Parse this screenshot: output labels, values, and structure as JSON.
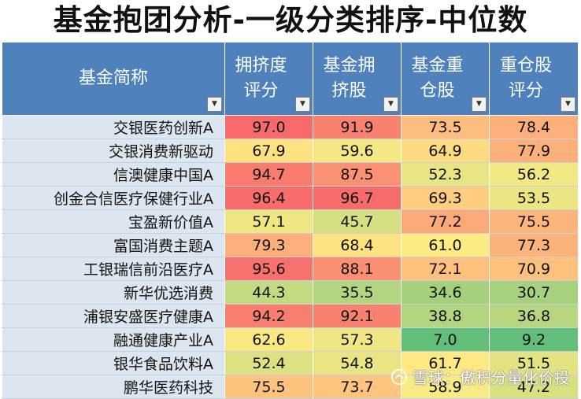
{
  "title": "基金抱团分析-一级分类排序-中位数",
  "columns": [
    "基金简称",
    "拥挤度评分",
    "基金拥挤股",
    "基金重仓股",
    "重仓股评分"
  ],
  "rows": [
    {
      "name": "交银医药创新A",
      "values": [
        "97.0",
        "91.9",
        "73.5",
        "78.4"
      ],
      "colors": [
        "#f8696b",
        "#f98170",
        "#fdbd7e",
        "#fcaf7b"
      ]
    },
    {
      "name": "交银消费新驱动",
      "values": [
        "67.9",
        "59.6",
        "64.9",
        "77.9"
      ],
      "colors": [
        "#fee282",
        "#f4e884",
        "#feda81",
        "#fcb17b"
      ]
    },
    {
      "name": "信澳健康中国A",
      "values": [
        "94.7",
        "87.5",
        "52.3",
        "56.2"
      ],
      "colors": [
        "#f87b6e",
        "#fa9172",
        "#e8e583",
        "#f2e884"
      ]
    },
    {
      "name": "创金合信医疗保健行业A",
      "values": [
        "96.4",
        "96.7",
        "69.3",
        "53.5"
      ],
      "colors": [
        "#f86c6b",
        "#f86b6b",
        "#fecd7f",
        "#ebe583"
      ]
    },
    {
      "name": "宝盈新价值A",
      "values": [
        "57.1",
        "45.7",
        "77.2",
        "75.5"
      ],
      "colors": [
        "#eee683",
        "#d5df81",
        "#fca979",
        "#fcb67c"
      ]
    },
    {
      "name": "富国消费主题A",
      "values": [
        "79.3",
        "68.4",
        "61.0",
        "77.3"
      ],
      "colors": [
        "#fcaf7b",
        "#fee282",
        "#feeb84",
        "#fcb37b"
      ]
    },
    {
      "name": "工银瑞信前沿医疗A",
      "values": [
        "95.6",
        "88.1",
        "72.1",
        "70.9"
      ],
      "colors": [
        "#f8716c",
        "#fa8f72",
        "#fdc17d",
        "#fdc07d"
      ]
    },
    {
      "name": "新华优选消费",
      "values": [
        "44.3",
        "35.5",
        "34.6",
        "30.7"
      ],
      "colors": [
        "#c2da80",
        "#b4d57f",
        "#a5d17d",
        "#a7d17e"
      ]
    },
    {
      "name": "浦银安盛医疗健康A",
      "values": [
        "94.2",
        "92.1",
        "38.8",
        "36.8"
      ],
      "colors": [
        "#f87e6f",
        "#f98170",
        "#b3d57f",
        "#b8d67f"
      ]
    },
    {
      "name": "融通健康产业A",
      "values": [
        "62.6",
        "57.3",
        "7.0",
        "9.2"
      ],
      "colors": [
        "#fae983",
        "#f0e784",
        "#63be7b",
        "#63be7b"
      ]
    },
    {
      "name": "银华食品饮料A",
      "values": [
        "52.4",
        "54.8",
        "61.7",
        "51.5"
      ],
      "colors": [
        "#dde181",
        "#e9e583",
        "#fee883",
        "#e4e382"
      ]
    },
    {
      "name": "鹏华医药科技",
      "values": [
        "75.5",
        "73.7",
        "58.9",
        "47.2"
      ],
      "colors": [
        "#fdc27d",
        "#fdc57e",
        "#f8ea84",
        "#d8e081"
      ]
    }
  ],
  "watermark": "雪球：傲积分量化价投"
}
